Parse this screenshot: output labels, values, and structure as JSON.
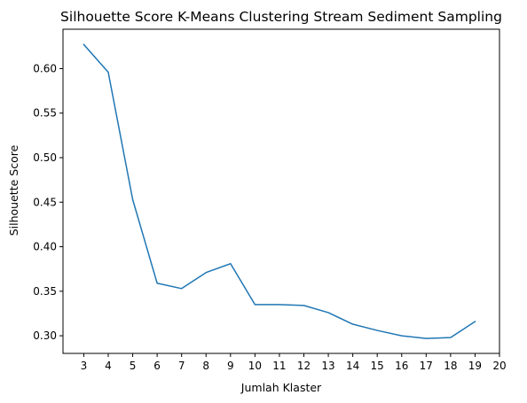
{
  "chart_data": {
    "type": "line",
    "title": "Silhouette Score K-Means Clustering Stream Sediment Sampling",
    "xlabel": "Jumlah Klaster",
    "ylabel": "Silhouette Score",
    "x_ticks": [
      3,
      4,
      5,
      6,
      7,
      8,
      9,
      10,
      11,
      12,
      13,
      14,
      15,
      16,
      17,
      18,
      19,
      20
    ],
    "y_ticks": [
      "0.30",
      "0.35",
      "0.40",
      "0.45",
      "0.50",
      "0.55",
      "0.60"
    ],
    "xlim": [
      2.15,
      20.0
    ],
    "ylim": [
      0.2802,
      0.6442
    ],
    "grid": false,
    "series": [
      {
        "color": "#1f77b4",
        "x": [
          3,
          4,
          5,
          6,
          7,
          8,
          9,
          10,
          11,
          12,
          13,
          14,
          15,
          16,
          17,
          18,
          19
        ],
        "y": [
          0.627,
          0.596,
          0.453,
          0.359,
          0.353,
          0.371,
          0.381,
          0.335,
          0.335,
          0.334,
          0.326,
          0.313,
          0.306,
          0.3,
          0.297,
          0.298,
          0.316
        ]
      }
    ]
  }
}
